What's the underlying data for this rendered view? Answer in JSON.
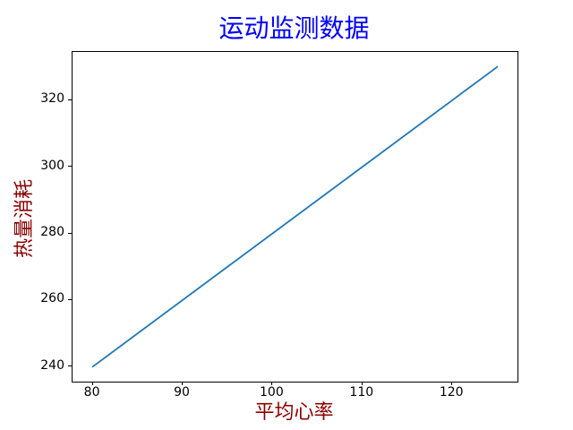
{
  "figure": {
    "background_color": "#ffffff",
    "spine_color": "#000000",
    "tick_color": "#000000"
  },
  "chart_data": {
    "type": "line",
    "title": "运动监测数据",
    "xlabel": "平均心率",
    "ylabel": "热量消耗",
    "x": [
      80,
      125
    ],
    "y": [
      240,
      330
    ],
    "xticks": [
      80,
      90,
      100,
      110,
      120
    ],
    "yticks": [
      240,
      260,
      280,
      300,
      320
    ],
    "xlim": [
      77.75,
      127.25
    ],
    "ylim": [
      235.5,
      334.5
    ],
    "grid": false,
    "legend": null,
    "line_color": "#1f77b4",
    "line_width": 1.8,
    "title_color": "#0000ff",
    "axis_label_color": "#8b0000"
  }
}
